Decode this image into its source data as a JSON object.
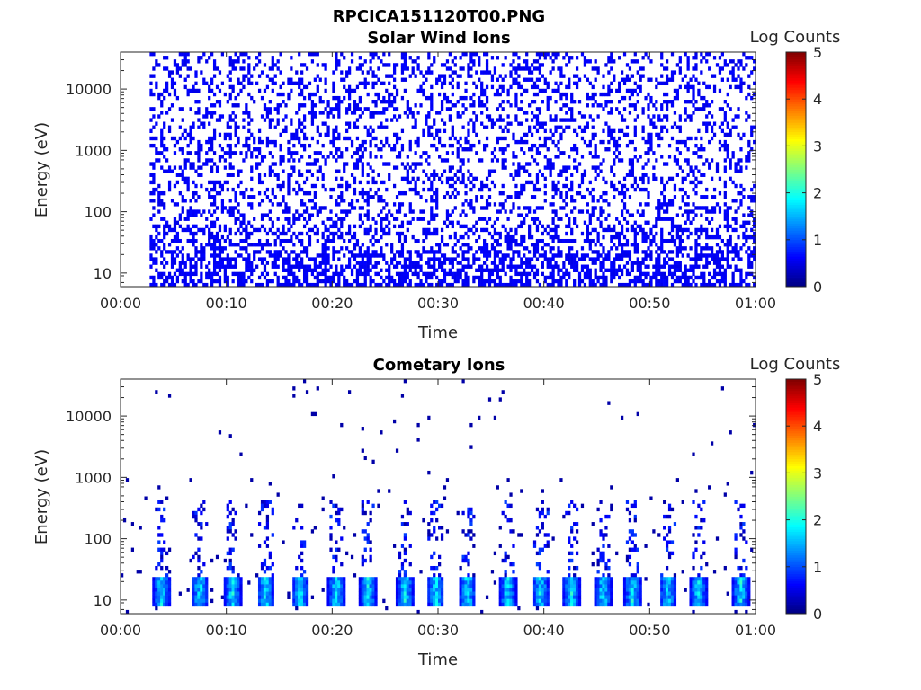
{
  "figure_title": "RPCICA151120T00.PNG",
  "chart_data": [
    {
      "type": "heatmap",
      "title": "Solar Wind Ions",
      "xlabel": "Time",
      "ylabel": "Energy (eV)",
      "x_ticks": [
        "00:00",
        "00:10",
        "00:20",
        "00:30",
        "00:40",
        "00:50",
        "01:00"
      ],
      "x_range_minutes": [
        0,
        60
      ],
      "y_scale": "log",
      "y_ticks": [
        "10",
        "100",
        "1000",
        "10000"
      ],
      "y_range_eV": [
        6,
        40000
      ],
      "colorbar": {
        "label": "Log Counts",
        "range": [
          0,
          5
        ],
        "ticks": [
          "0",
          "1",
          "2",
          "3",
          "4",
          "5"
        ]
      },
      "data_start_minutes": 2.7,
      "dominant_value": 0.5
    },
    {
      "type": "heatmap",
      "title": "Cometary Ions",
      "xlabel": "Time",
      "ylabel": "Energy (eV)",
      "x_ticks": [
        "00:00",
        "00:10",
        "00:20",
        "00:30",
        "00:40",
        "00:50",
        "01:00"
      ],
      "x_range_minutes": [
        0,
        60
      ],
      "y_scale": "log",
      "y_ticks": [
        "10",
        "100",
        "1000",
        "10000"
      ],
      "y_range_eV": [
        6,
        40000
      ],
      "colorbar": {
        "label": "Log Counts",
        "range": [
          0,
          5
        ],
        "ticks": [
          "0",
          "1",
          "2",
          "3",
          "4",
          "5"
        ]
      },
      "bursts_minutes": [
        3.9,
        7.5,
        10.6,
        13.7,
        17.0,
        20.4,
        23.4,
        26.9,
        29.8,
        32.8,
        36.6,
        39.7,
        42.6,
        45.6,
        48.4,
        51.7,
        54.6,
        58.6
      ],
      "max_value": 1.9
    }
  ]
}
